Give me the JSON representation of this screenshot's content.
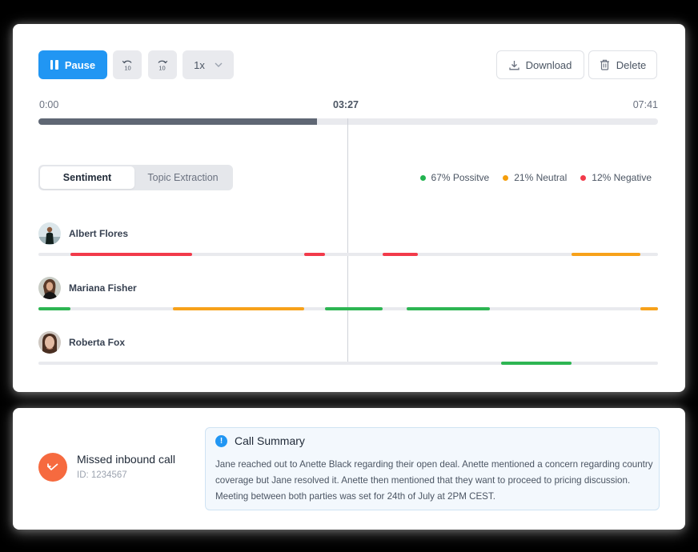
{
  "player": {
    "pause_label": "Pause",
    "rewind_label": "10",
    "forward_label": "10",
    "speed_label": "1x",
    "download_label": "Download",
    "delete_label": "Delete",
    "time_start": "0:00",
    "time_current": "03:27",
    "time_end": "07:41",
    "progress_percent": 44.9
  },
  "tabs": [
    {
      "label": "Sentiment",
      "active": true
    },
    {
      "label": "Topic Extraction",
      "active": false
    }
  ],
  "legend": [
    {
      "label": "67% Possitve",
      "color": "#22b350"
    },
    {
      "label": "21% Neutral",
      "color": "#f59e0b"
    },
    {
      "label": "12% Negative",
      "color": "#f23a4a"
    }
  ],
  "colors": {
    "positive": "#2db552",
    "neutral": "#f7a11a",
    "negative": "#f23a4a",
    "primary": "#2196f3",
    "missed": "#f66a3f"
  },
  "speakers": [
    {
      "name": "Albert Flores",
      "segments": [
        {
          "start": 5.2,
          "end": 24.8,
          "sentiment": "negative"
        },
        {
          "start": 42.9,
          "end": 46.3,
          "sentiment": "negative"
        },
        {
          "start": 55.6,
          "end": 61.2,
          "sentiment": "negative"
        },
        {
          "start": 86.0,
          "end": 97.2,
          "sentiment": "neutral"
        }
      ]
    },
    {
      "name": "Mariana Fisher",
      "segments": [
        {
          "start": 0,
          "end": 5.2,
          "sentiment": "positive"
        },
        {
          "start": 21.7,
          "end": 42.9,
          "sentiment": "neutral"
        },
        {
          "start": 46.3,
          "end": 55.6,
          "sentiment": "positive"
        },
        {
          "start": 59.4,
          "end": 72.9,
          "sentiment": "positive"
        },
        {
          "start": 97.2,
          "end": 100,
          "sentiment": "neutral"
        }
      ]
    },
    {
      "name": "Roberta Fox",
      "segments": [
        {
          "start": 74.7,
          "end": 86.0,
          "sentiment": "positive"
        }
      ]
    }
  ],
  "call": {
    "title": "Missed inbound call",
    "id_label": "ID: 1234567"
  },
  "summary": {
    "title": "Call Summary",
    "icon": "!",
    "text": "Jane reached out to Anette Black regarding their open deal. Anette mentioned a concern regarding country coverage but Jane resolved it. Anette then mentioned that they want to proceed to pricing discussion. Meeting between both parties was set for 24th of July at 2PM CEST."
  }
}
